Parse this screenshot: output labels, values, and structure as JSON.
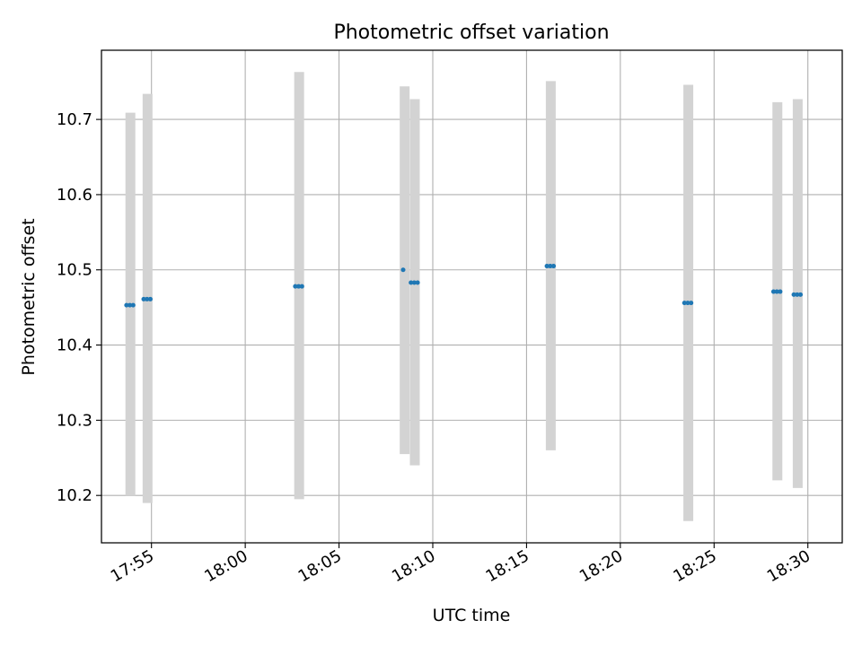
{
  "chart_data": {
    "type": "scatter",
    "title": "Photometric offset variation",
    "xlabel": "UTC time",
    "ylabel": "Photometric offset",
    "x_type": "time",
    "xlim": [
      "17:52:20",
      "18:31:50"
    ],
    "ylim": [
      10.137,
      10.792
    ],
    "xticks": [
      "17:55",
      "18:00",
      "18:05",
      "18:10",
      "18:15",
      "18:20",
      "18:25",
      "18:30"
    ],
    "yticks": [
      10.2,
      10.3,
      10.4,
      10.5,
      10.6,
      10.7
    ],
    "ytick_labels": [
      "10.2",
      "10.3",
      "10.4",
      "10.5",
      "10.6",
      "10.7"
    ],
    "grid": true,
    "colors": {
      "points": "#1f77b4",
      "error_bars": "#d3d3d3",
      "grid": "#b0b0b0"
    },
    "series": [
      {
        "points": [
          {
            "x": [
              "17:53:40",
              "17:54:05"
            ],
            "y": 10.453,
            "err_low": 10.2,
            "err_high": 10.709
          },
          {
            "x": [
              "17:54:35",
              "17:55:00"
            ],
            "y": 10.461,
            "err_low": 10.19,
            "err_high": 10.734
          },
          {
            "x": [
              "18:02:40",
              "18:03:05"
            ],
            "y": 10.478,
            "err_low": 10.195,
            "err_high": 10.763
          },
          {
            "x": [
              "18:08:25",
              "18:08:35"
            ],
            "y": 10.5,
            "err_low": 10.255,
            "err_high": 10.744
          },
          {
            "x": [
              "18:08:50",
              "18:09:15"
            ],
            "y": 10.483,
            "err_low": 10.24,
            "err_high": 10.727
          },
          {
            "x": [
              "18:16:05",
              "18:16:30"
            ],
            "y": 10.505,
            "err_low": 10.26,
            "err_high": 10.751
          },
          {
            "x": [
              "18:23:25",
              "18:23:50"
            ],
            "y": 10.456,
            "err_low": 10.166,
            "err_high": 10.746
          },
          {
            "x": [
              "18:28:10",
              "18:28:35"
            ],
            "y": 10.471,
            "err_low": 10.22,
            "err_high": 10.723
          },
          {
            "x": [
              "18:29:15",
              "18:29:40"
            ],
            "y": 10.467,
            "err_low": 10.21,
            "err_high": 10.727
          }
        ]
      }
    ]
  }
}
